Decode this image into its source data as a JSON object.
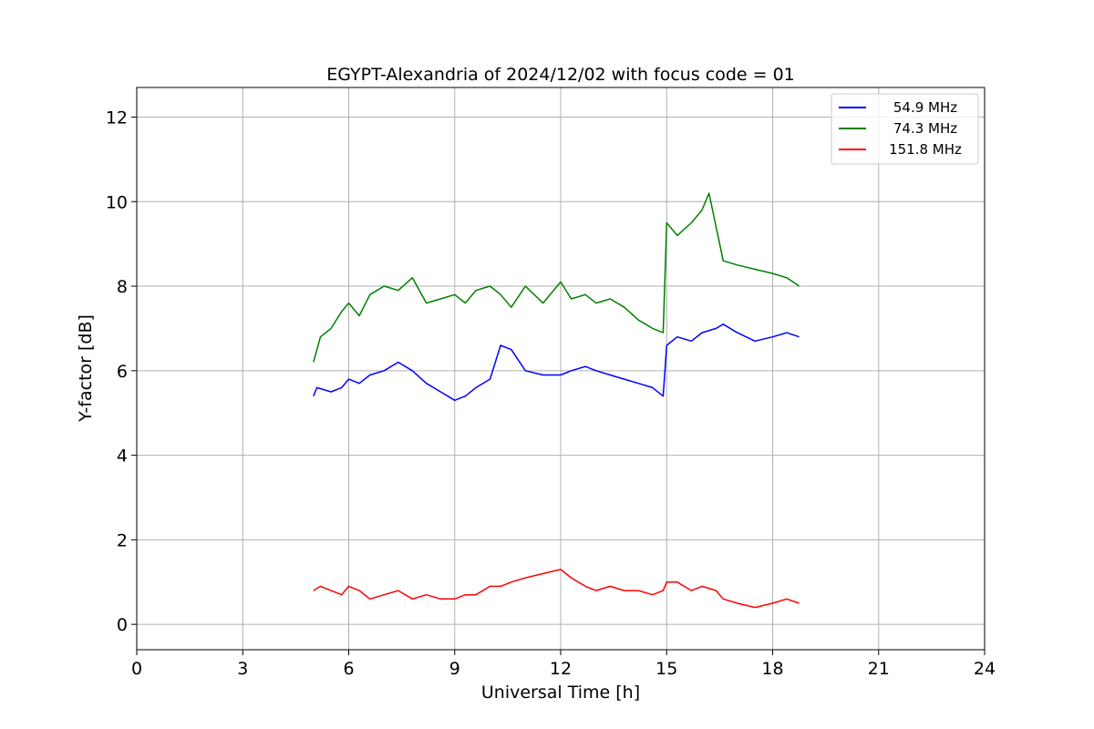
{
  "chart_data": {
    "type": "line",
    "title": "EGYPT-Alexandria of 2024/12/02 with focus code = 01",
    "xlabel": "Universal Time [h]",
    "ylabel": "Y-factor [dB]",
    "xlim": [
      0,
      24
    ],
    "ylim": [
      -0.6,
      12.7
    ],
    "xticks": [
      0,
      3,
      6,
      9,
      12,
      15,
      18,
      21,
      24
    ],
    "yticks": [
      0,
      2,
      4,
      6,
      8,
      10,
      12
    ],
    "grid": true,
    "legend_position": "top-right",
    "series": [
      {
        "name": "54.9 MHz",
        "color": "#0000ff",
        "x": [
          5.0,
          5.1,
          5.5,
          5.8,
          6.0,
          6.3,
          6.6,
          7.0,
          7.4,
          7.8,
          8.2,
          8.6,
          9.0,
          9.3,
          9.6,
          10.0,
          10.3,
          10.6,
          11.0,
          11.5,
          12.0,
          12.3,
          12.7,
          13.0,
          13.4,
          13.8,
          14.2,
          14.6,
          14.9,
          15.0,
          15.3,
          15.7,
          16.0,
          16.4,
          16.6,
          17.0,
          17.5,
          18.0,
          18.4,
          18.75
        ],
        "y": [
          5.4,
          5.6,
          5.5,
          5.6,
          5.8,
          5.7,
          5.9,
          6.0,
          6.2,
          6.0,
          5.7,
          5.5,
          5.3,
          5.4,
          5.6,
          5.8,
          6.6,
          6.5,
          6.0,
          5.9,
          5.9,
          6.0,
          6.1,
          6.0,
          5.9,
          5.8,
          5.7,
          5.6,
          5.4,
          6.6,
          6.8,
          6.7,
          6.9,
          7.0,
          7.1,
          6.9,
          6.7,
          6.8,
          6.9,
          6.8
        ]
      },
      {
        "name": "74.3 MHz",
        "color": "#008000",
        "x": [
          5.0,
          5.2,
          5.5,
          5.8,
          6.0,
          6.3,
          6.6,
          7.0,
          7.4,
          7.8,
          8.2,
          8.6,
          9.0,
          9.3,
          9.6,
          10.0,
          10.3,
          10.6,
          11.0,
          11.5,
          12.0,
          12.3,
          12.7,
          13.0,
          13.4,
          13.8,
          14.2,
          14.6,
          14.9,
          15.0,
          15.3,
          15.7,
          16.0,
          16.2,
          16.4,
          16.6,
          17.0,
          17.5,
          18.0,
          18.4,
          18.75
        ],
        "y": [
          6.2,
          6.8,
          7.0,
          7.4,
          7.6,
          7.3,
          7.8,
          8.0,
          7.9,
          8.2,
          7.6,
          7.7,
          7.8,
          7.6,
          7.9,
          8.0,
          7.8,
          7.5,
          8.0,
          7.6,
          8.1,
          7.7,
          7.8,
          7.6,
          7.7,
          7.5,
          7.2,
          7.0,
          6.9,
          9.5,
          9.2,
          9.5,
          9.8,
          10.2,
          9.4,
          8.6,
          8.5,
          8.4,
          8.3,
          8.2,
          8.0
        ]
      },
      {
        "name": "151.8 MHz",
        "color": "#ff0000",
        "x": [
          5.0,
          5.2,
          5.5,
          5.8,
          6.0,
          6.3,
          6.6,
          7.0,
          7.4,
          7.8,
          8.2,
          8.6,
          9.0,
          9.3,
          9.6,
          10.0,
          10.3,
          10.6,
          11.0,
          11.5,
          12.0,
          12.3,
          12.7,
          13.0,
          13.4,
          13.8,
          14.2,
          14.6,
          14.9,
          15.0,
          15.3,
          15.7,
          16.0,
          16.4,
          16.6,
          17.0,
          17.5,
          18.0,
          18.4,
          18.75
        ],
        "y": [
          0.8,
          0.9,
          0.8,
          0.7,
          0.9,
          0.8,
          0.6,
          0.7,
          0.8,
          0.6,
          0.7,
          0.6,
          0.6,
          0.7,
          0.7,
          0.9,
          0.9,
          1.0,
          1.1,
          1.2,
          1.3,
          1.1,
          0.9,
          0.8,
          0.9,
          0.8,
          0.8,
          0.7,
          0.8,
          1.0,
          1.0,
          0.8,
          0.9,
          0.8,
          0.6,
          0.5,
          0.4,
          0.5,
          0.6,
          0.5
        ]
      }
    ]
  }
}
